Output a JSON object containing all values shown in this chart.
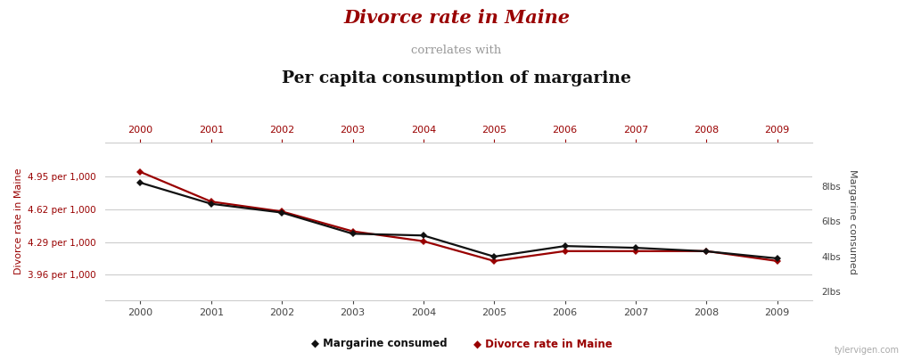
{
  "title_line1": "Divorce rate in Maine",
  "title_line2": "correlates with",
  "title_line3": "Per capita consumption of margarine",
  "years": [
    2000,
    2001,
    2002,
    2003,
    2004,
    2005,
    2006,
    2007,
    2008,
    2009
  ],
  "margarine": [
    8.2,
    7.0,
    6.5,
    5.3,
    5.2,
    4.0,
    4.6,
    4.5,
    4.3,
    3.9
  ],
  "divorce": [
    5.0,
    4.7,
    4.6,
    4.4,
    4.3,
    4.1,
    4.2,
    4.2,
    4.2,
    4.1
  ],
  "divorce_yticks": [
    3.96,
    4.29,
    4.62,
    4.95
  ],
  "divorce_ytick_labels": [
    "3.96 per 1,000",
    "4.29 per 1,000",
    "4.62 per 1,000",
    "4.95 per 1,000"
  ],
  "margarine_yticks": [
    2,
    4,
    6,
    8
  ],
  "margarine_ytick_labels": [
    "2lbs",
    "4lbs",
    "6lbs",
    "8lbs"
  ],
  "color_divorce": "#990000",
  "color_margarine": "#111111",
  "color_title1": "#990000",
  "color_title2": "#999999",
  "color_title3": "#111111",
  "color_top_ticks": "#990000",
  "grid_color": "#cccccc",
  "spine_color": "#cccccc",
  "background_color": "#ffffff",
  "watermark": "tylervigen.com",
  "legend_margarine": "Margarine consumed",
  "legend_divorce": "Divorce rate in Maine",
  "ylabel_left": "Divorce rate in Maine",
  "ylabel_right": "Margarine consumed",
  "divorce_ylim": [
    3.7,
    5.3
  ],
  "margarine_ylim": [
    1.5,
    10.5
  ]
}
